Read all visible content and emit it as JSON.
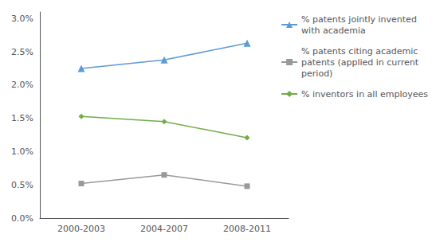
{
  "chart_data": {
    "type": "line",
    "categories": [
      "2000-2003",
      "2004-2007",
      "2008-2011"
    ],
    "series": [
      {
        "name": "% patents jointly invented\nwith academia",
        "color": "#5B9BD5",
        "marker": "triangle",
        "values": [
          0.0225,
          0.0238,
          0.0263
        ]
      },
      {
        "name": "% patents citing academic\npatents (applied in current\nperiod)",
        "color": "#999999",
        "marker": "square",
        "values": [
          0.0052,
          0.0065,
          0.0048
        ]
      },
      {
        "name": "% inventors in all employees",
        "color": "#70AD47",
        "marker": "diamond",
        "values": [
          0.0153,
          0.0145,
          0.0121
        ]
      }
    ],
    "ylim": [
      0.0,
      0.031
    ],
    "yticks": [
      {
        "value": 0.0,
        "label": "0.0%"
      },
      {
        "value": 0.005,
        "label": "0.5%"
      },
      {
        "value": 0.01,
        "label": "1.0%"
      },
      {
        "value": 0.015,
        "label": "1.5%"
      },
      {
        "value": 0.02,
        "label": "2.0%"
      },
      {
        "value": 0.025,
        "label": "2.5%"
      },
      {
        "value": 0.03,
        "label": "3.0%"
      }
    ],
    "grid": false,
    "legend": "right"
  }
}
